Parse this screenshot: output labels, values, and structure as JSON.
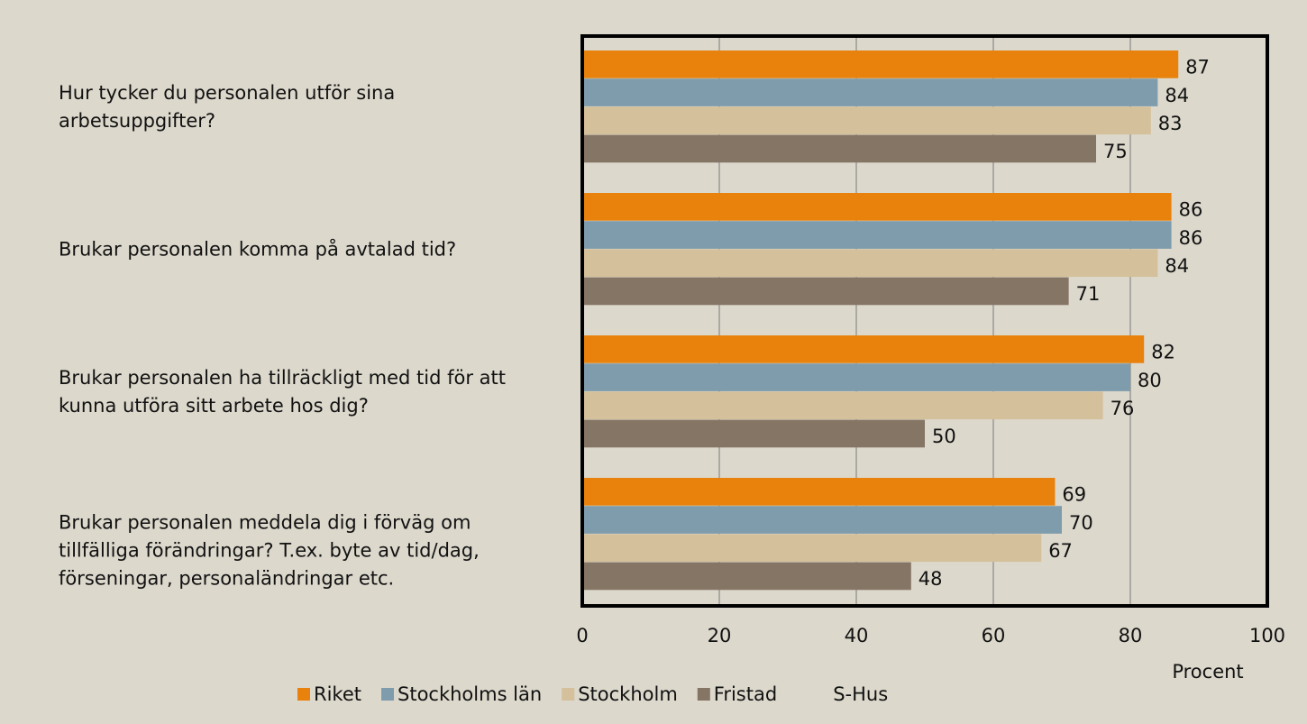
{
  "chart_data": {
    "type": "bar",
    "orientation": "horizontal",
    "categories": [
      "Hur tycker du personalen utför sina arbetsuppgifter?",
      "Brukar personalen komma på avtalad tid?",
      "Brukar personalen ha tillräckligt med tid för att kunna utföra sitt arbete hos dig?",
      "Brukar personalen meddela dig i förväg om tillfälliga förändringar? T.ex. byte av tid/dag, förseningar, personaländringar etc."
    ],
    "series": [
      {
        "name": "Riket",
        "color": "#e8820c",
        "values": [
          87,
          86,
          82,
          69
        ]
      },
      {
        "name": "Stockholms län",
        "color": "#7f9cad",
        "values": [
          84,
          86,
          80,
          70
        ]
      },
      {
        "name": "Stockholm",
        "color": "#d4c09a",
        "values": [
          83,
          84,
          76,
          67
        ]
      },
      {
        "name": "Fristad",
        "color": "#857565",
        "values": [
          75,
          71,
          50,
          48
        ]
      },
      {
        "name": "S-Hus",
        "values": [
          null,
          null,
          null,
          null
        ]
      }
    ],
    "xlabel": "Procent",
    "xlim": [
      0,
      100
    ],
    "xticks": [
      0,
      20,
      40,
      60,
      80,
      100
    ],
    "grid": true
  }
}
